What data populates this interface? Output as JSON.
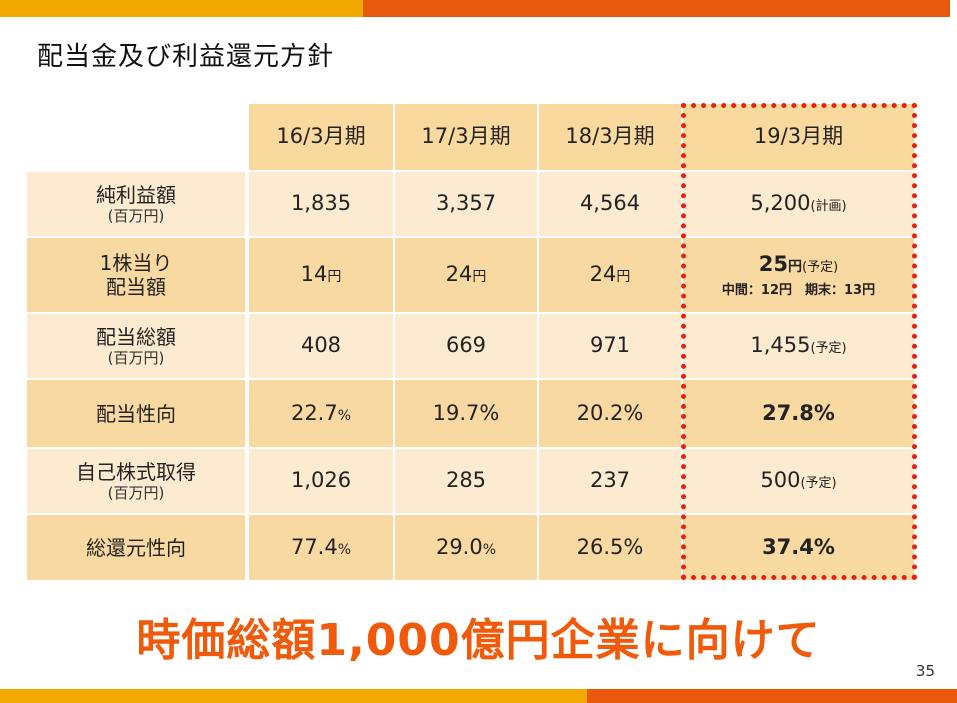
{
  "title": "配当金及び利益還元方針",
  "headers": [
    "16/3月期",
    "17/3月期",
    "18/3月期",
    "19/3月期"
  ],
  "rows": [
    {
      "label": "純利益額",
      "sublabel": "(百万円)",
      "values": [
        {
          "v": "1,835",
          "u": ""
        },
        {
          "v": "3,357",
          "u": ""
        },
        {
          "v": "4,564",
          "u": ""
        },
        {
          "v": "5,200",
          "u": "(計画)"
        }
      ]
    },
    {
      "label": "1株当り",
      "label2": "配当額",
      "values": [
        {
          "v": "14",
          "u": "円"
        },
        {
          "v": "24",
          "u": "円"
        },
        {
          "v": "24",
          "u": "円"
        },
        {
          "v": "25",
          "u": "円",
          "u2": "(予定)",
          "note": "中間：12円　期末：13円"
        }
      ]
    },
    {
      "label": "配当総額",
      "sublabel": "(百万円)",
      "values": [
        {
          "v": "408",
          "u": ""
        },
        {
          "v": "669",
          "u": ""
        },
        {
          "v": "971",
          "u": ""
        },
        {
          "v": "1,455",
          "u": "(予定)"
        }
      ]
    },
    {
      "label": "配当性向",
      "values": [
        {
          "v": "22.7",
          "u": "%"
        },
        {
          "v": "19.7%",
          "u": ""
        },
        {
          "v": "20.2%",
          "u": ""
        },
        {
          "v": "27.8%",
          "u": ""
        }
      ]
    },
    {
      "label": "自己株式取得",
      "sublabel": "(百万円)",
      "values": [
        {
          "v": "1,026",
          "u": ""
        },
        {
          "v": "285",
          "u": ""
        },
        {
          "v": "237",
          "u": ""
        },
        {
          "v": "500",
          "u": "(予定)"
        }
      ]
    },
    {
      "label": "総還元性向",
      "values": [
        {
          "v": "77.4",
          "u": "%"
        },
        {
          "v": "29.0",
          "u": "%"
        },
        {
          "v": "26.5%",
          "u": ""
        },
        {
          "v": "37.4%",
          "u": ""
        }
      ]
    }
  ],
  "slogan": "時価総額1,000億円企業に向けて",
  "page_number": "35",
  "colors": {
    "accent_orange": "#e8590c",
    "accent_yellow": "#f2a900",
    "header_fill": "#fad99e",
    "row_dark": "#f9d9a2",
    "row_light": "#fdebd1",
    "highlight_border": "#e8200e",
    "slogan_text": "#f05a0a"
  }
}
